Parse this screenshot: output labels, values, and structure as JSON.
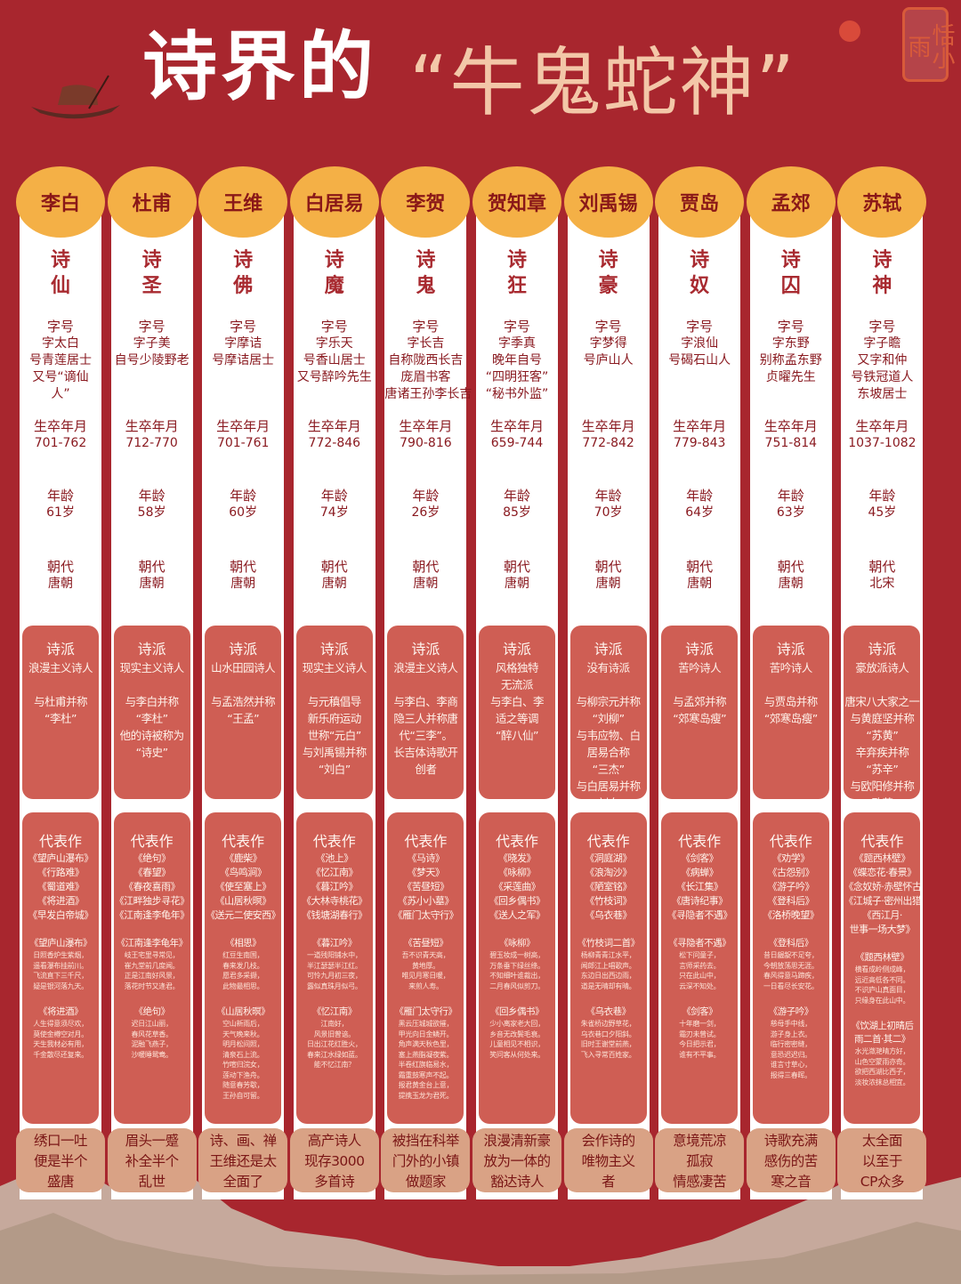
{
  "title": {
    "part1": "诗界的",
    "part2": "“牛鬼蛇神”"
  },
  "seal_text": "恬小雨",
  "label_zihao": "字号",
  "label_life": "生卒年月",
  "label_age": "年龄",
  "label_dynasty": "朝代",
  "label_school": "诗派",
  "label_works": "代表作",
  "poets": [
    {
      "name": "李白",
      "title": [
        "诗",
        "仙"
      ],
      "zihao": [
        "字太白",
        "号青莲居士",
        "又号“谪仙",
        "人”"
      ],
      "life": "701-762",
      "age": "61岁",
      "dynasty": "唐朝",
      "school": [
        "浪漫主义诗人",
        "",
        "与杜甫并称",
        "“李杜”"
      ],
      "works": [
        "《望庐山瀑布》",
        "《行路难》",
        "《蜀道难》",
        "《将进酒》",
        "《早发白帝城》"
      ],
      "excerpts": [
        {
          "title": "《望庐山瀑布》",
          "lines": [
            "日照香炉生紫烟，",
            "遥看瀑布挂前川。",
            "飞流直下三千尺，",
            "疑是银河落九天。"
          ]
        },
        {
          "title": "《将进酒》",
          "lines": [
            "人生得意须尽欢，",
            "莫使金樽空对月。",
            "天生我材必有用，",
            "千金散尽还复来。"
          ]
        }
      ],
      "summary": [
        "绣口一吐",
        "便是半个",
        "盛唐"
      ]
    },
    {
      "name": "杜甫",
      "title": [
        "诗",
        "圣"
      ],
      "zihao": [
        "字子美",
        "自号少陵野老"
      ],
      "life": "712-770",
      "age": "58岁",
      "dynasty": "唐朝",
      "school": [
        "现实主义诗人",
        "",
        "与李白并称",
        "“李杜”",
        "他的诗被称为",
        "“诗史”"
      ],
      "works": [
        "《绝句》",
        "《春望》",
        "《春夜喜雨》",
        "《江畔独步寻花》",
        "《江南逢李龟年》"
      ],
      "excerpts": [
        {
          "title": "《江南逢李龟年》",
          "lines": [
            "岐王宅里寻常见，",
            "崔九堂前几度闻。",
            "正是江南好风景，",
            "落花时节又逢君。"
          ]
        },
        {
          "title": "《绝句》",
          "lines": [
            "迟日江山丽，",
            "春风花草香。",
            "泥融飞燕子，",
            "沙暖睡鸳鸯。"
          ]
        }
      ],
      "summary": [
        "眉头一蹙",
        "补全半个",
        "乱世"
      ]
    },
    {
      "name": "王维",
      "title": [
        "诗",
        "佛"
      ],
      "zihao": [
        "字摩诘",
        "号摩诘居士"
      ],
      "life": "701-761",
      "age": "60岁",
      "dynasty": "唐朝",
      "school": [
        "山水田园诗人",
        "",
        "与孟浩然并称",
        "“王孟”"
      ],
      "works": [
        "《鹿柴》",
        "《鸟鸣涧》",
        "《使至塞上》",
        "《山居秋暝》",
        "《送元二使安西》"
      ],
      "excerpts": [
        {
          "title": "《相思》",
          "lines": [
            "红豆生南国，",
            "春来发几枝。",
            "愿君多采撷，",
            "此物最相思。"
          ]
        },
        {
          "title": "《山居秋暝》",
          "lines": [
            "空山新雨后，",
            "天气晚来秋。",
            "明月松间照，",
            "清泉石上流。",
            "竹喧归浣女，",
            "莲动下渔舟。",
            "随意春芳歇，",
            "王孙自可留。"
          ]
        }
      ],
      "summary": [
        "诗、画、禅",
        "王维还是太",
        "全面了"
      ]
    },
    {
      "name": "白居易",
      "title": [
        "诗",
        "魔"
      ],
      "zihao": [
        "字乐天",
        "号香山居士",
        "又号醉吟先生"
      ],
      "life": "772-846",
      "age": "74岁",
      "dynasty": "唐朝",
      "school": [
        "现实主义诗人",
        "",
        "与元稹倡导",
        "新乐府运动",
        "世称“元白”",
        "与刘禹锡并称",
        "“刘白”"
      ],
      "works": [
        "《池上》",
        "《忆江南》",
        "《暮江吟》",
        "《大林寺桃花》",
        "《钱塘湖春行》"
      ],
      "excerpts": [
        {
          "title": "《暮江吟》",
          "lines": [
            "一道残阳铺水中，",
            "半江瑟瑟半江红。",
            "可怜九月初三夜，",
            "露似真珠月似弓。"
          ]
        },
        {
          "title": "《忆江南》",
          "lines": [
            "江南好，",
            "风景旧曾谙。",
            "日出江花红胜火，",
            "春来江水绿如蓝。",
            "能不忆江南？"
          ]
        }
      ],
      "summary": [
        "高产诗人",
        "现存3000",
        "多首诗"
      ]
    },
    {
      "name": "李贺",
      "title": [
        "诗",
        "鬼"
      ],
      "zihao": [
        "字长吉",
        "自称陇西长吉",
        "庞眉书客",
        "唐诸王孙李长吉"
      ],
      "life": "790-816",
      "age": "26岁",
      "dynasty": "唐朝",
      "school": [
        "浪漫主义诗人",
        "",
        "与李白、李商",
        "隐三人并称唐",
        "代“三李”。",
        "长吉体诗歌开",
        "创者"
      ],
      "works": [
        "《马诗》",
        "《梦天》",
        "《苦昼短》",
        "《苏小小墓》",
        "《雁门太守行》"
      ],
      "excerpts": [
        {
          "title": "《苦昼短》",
          "lines": [
            "吾不识青天高，",
            "黄地厚。",
            "唯见月寒日暖，",
            "来煎人寿。"
          ]
        },
        {
          "title": "《雁门太守行》",
          "lines": [
            "黑云压城城欲摧，",
            "甲光向日金鳞开。",
            "角声满天秋色里，",
            "塞上燕脂凝夜紫。",
            "半卷红旗临易水，",
            "霜重鼓寒声不起。",
            "报君黄金台上意，",
            "提携玉龙为君死。"
          ]
        }
      ],
      "summary": [
        "被挡在科举",
        "门外的小镇",
        "做题家"
      ]
    },
    {
      "name": "贺知章",
      "title": [
        "诗",
        "狂"
      ],
      "zihao": [
        "字季真",
        "晚年自号",
        "“四明狂客”",
        "“秘书外监”"
      ],
      "life": "659-744",
      "age": "85岁",
      "dynasty": "唐朝",
      "school": [
        "风格独特",
        "无流派",
        "与李白、李",
        "适之等调",
        "“醉八仙”"
      ],
      "works": [
        "《晓发》",
        "《咏柳》",
        "《采莲曲》",
        "《回乡偶书》",
        "《送人之军》"
      ],
      "excerpts": [
        {
          "title": "《咏柳》",
          "lines": [
            "碧玉妆成一树高，",
            "万条垂下绿丝绦。",
            "不知细叶谁裁出，",
            "二月春风似剪刀。"
          ]
        },
        {
          "title": "《回乡偶书》",
          "lines": [
            "少小离家老大回，",
            "乡音无改鬓毛衰。",
            "儿童相见不相识，",
            "笑问客从何处来。"
          ]
        }
      ],
      "summary": [
        "浪漫清新豪",
        "放为一体的",
        "豁达诗人"
      ]
    },
    {
      "name": "刘禹锡",
      "title": [
        "诗",
        "豪"
      ],
      "zihao": [
        "字梦得",
        "号庐山人"
      ],
      "life": "772-842",
      "age": "70岁",
      "dynasty": "唐朝",
      "school": [
        "没有诗派",
        "",
        "与柳宗元并称",
        "“刘柳”",
        "与韦应物、白",
        "居易合称",
        "“三杰”",
        "与白居易并称",
        "“刘白”"
      ],
      "works": [
        "《洞庭湖》",
        "《浪淘沙》",
        "《陋室铭》",
        "《竹枝词》",
        "《乌衣巷》"
      ],
      "excerpts": [
        {
          "title": "《竹枝词二首》",
          "lines": [
            "杨柳青青江水平，",
            "闻郎江上唱歌声。",
            "东边日出西边雨，",
            "道是无晴却有晴。"
          ]
        },
        {
          "title": "《乌衣巷》",
          "lines": [
            "朱雀桥边野草花，",
            "乌衣巷口夕阳斜。",
            "旧时王谢堂前燕，",
            "飞入寻常百姓家。"
          ]
        }
      ],
      "summary": [
        "会作诗的",
        "唯物主义",
        "者"
      ]
    },
    {
      "name": "贾岛",
      "title": [
        "诗",
        "奴"
      ],
      "zihao": [
        "字浪仙",
        "号碣石山人"
      ],
      "life": "779-843",
      "age": "64岁",
      "dynasty": "唐朝",
      "school": [
        "苦吟诗人",
        "",
        "与孟郊并称",
        "“郊寒岛瘦”"
      ],
      "works": [
        "《剑客》",
        "《病蝉》",
        "《长江集》",
        "《唐诗纪事》",
        "《寻隐者不遇》"
      ],
      "excerpts": [
        {
          "title": "《寻隐者不遇》",
          "lines": [
            "松下问童子，",
            "言师采药去。",
            "只在此山中，",
            "云深不知处。"
          ]
        },
        {
          "title": "《剑客》",
          "lines": [
            "十年磨一剑，",
            "霜刃未曾试。",
            "今日把示君，",
            "谁有不平事。"
          ]
        }
      ],
      "summary": [
        "意境荒凉",
        "孤寂",
        "情感凄苦"
      ]
    },
    {
      "name": "孟郊",
      "title": [
        "诗",
        "囚"
      ],
      "zihao": [
        "字东野",
        "别称孟东野",
        "贞曜先生"
      ],
      "life": "751-814",
      "age": "63岁",
      "dynasty": "唐朝",
      "school": [
        "苦吟诗人",
        "",
        "与贾岛并称",
        "“郊寒岛瘦”"
      ],
      "works": [
        "《劝学》",
        "《古怨别》",
        "《游子吟》",
        "《登科后》",
        "《洛桥晚望》"
      ],
      "excerpts": [
        {
          "title": "《登科后》",
          "lines": [
            "昔日龌龊不足夸，",
            "今朝放荡思无涯。",
            "春风得意马蹄疾，",
            "一日看尽长安花。"
          ]
        },
        {
          "title": "《游子吟》",
          "lines": [
            "慈母手中线，",
            "游子身上衣。",
            "临行密密缝，",
            "意恐迟迟归。",
            "谁言寸草心，",
            "报得三春晖。"
          ]
        }
      ],
      "summary": [
        "诗歌充满",
        "感伤的苦",
        "寒之音"
      ]
    },
    {
      "name": "苏轼",
      "title": [
        "诗",
        "神"
      ],
      "zihao": [
        "字子瞻",
        "又字和仲",
        "号铁冠道人",
        "东坡居士"
      ],
      "life": "1037-1082",
      "age": "45岁",
      "dynasty": "北宋",
      "school": [
        "豪放派诗人",
        "",
        "唐宋八大家之一",
        "与黄庭坚并称",
        "“苏黄”",
        "辛弃疾并称",
        "“苏辛”",
        "与欧阳修并称",
        "“欧苏”"
      ],
      "works": [
        "《题西林壁》",
        "《蝶恋花·春景》",
        "《念奴娇·赤壁怀古》",
        "《江城子·密州出猎》",
        "《西江月·",
        "世事一场大梦》"
      ],
      "excerpts": [
        {
          "title": "《题西林壁》",
          "lines": [
            "横看成岭侧成峰，",
            "远近高低各不同。",
            "不识庐山真面目，",
            "只缘身在此山中。"
          ]
        },
        {
          "title": "《饮湖上初晴后",
          "title2": "雨二首·其二》",
          "lines": [
            "水光潋滟晴方好，",
            "山色空蒙雨亦奇。",
            "欲把西湖比西子，",
            "淡妆浓抹总相宜。"
          ]
        }
      ],
      "summary": [
        "太全面",
        "以至于",
        "CP众多"
      ]
    }
  ]
}
